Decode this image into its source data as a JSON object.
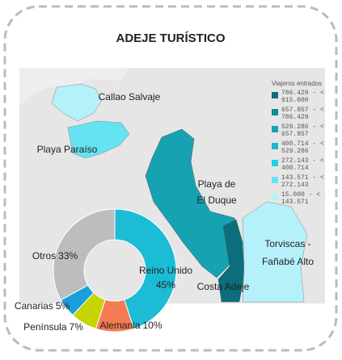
{
  "title": "ADEJE TURÍSTICO",
  "map": {
    "legend_title": "Viajeros entrados",
    "legend": [
      {
        "label": "786.429 - < 915.000",
        "color": "#0a6e7d"
      },
      {
        "label": "657.857 - < 786.429",
        "color": "#0f8a99"
      },
      {
        "label": "529.286 - < 657.857",
        "color": "#17a2b2"
      },
      {
        "label": "400.714 - < 529.286",
        "color": "#1bb8ca"
      },
      {
        "label": "272.143 - < 400.714",
        "color": "#22d0e2"
      },
      {
        "label": "143.571 - < 272.143",
        "color": "#66e3f2"
      },
      {
        "label": "15.000 - < 143.571",
        "color": "#b5f1fb"
      }
    ],
    "areas": [
      "Callao Salvaje",
      "Playa Paraíso",
      "Playa de El Duque",
      "Torviscas - Fañabé Alto",
      "Costa Adeje"
    ]
  },
  "chart_data": {
    "type": "pie",
    "categories": [
      "Reino Unido",
      "Alemania",
      "Península",
      "Canarias",
      "Otros"
    ],
    "values": [
      45,
      10,
      7,
      5,
      33
    ],
    "value_labels": [
      "45%",
      "10%",
      "7%",
      "5%",
      "33%"
    ],
    "colors": [
      "#1cbcd6",
      "#f47b52",
      "#c6d500",
      "#1a9ed9",
      "#bdbdbd"
    ]
  }
}
